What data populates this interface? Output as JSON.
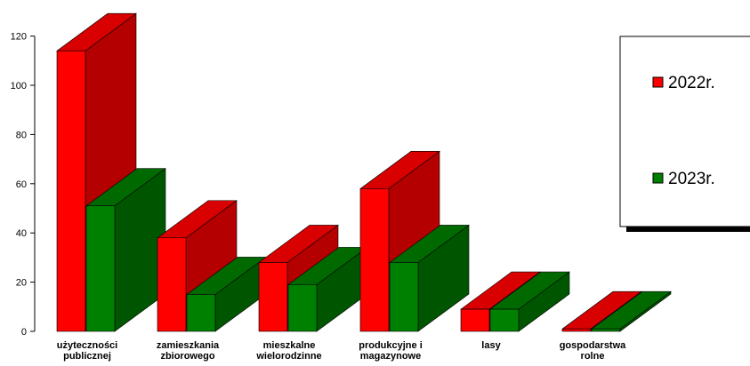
{
  "chart_data": {
    "type": "bar",
    "categories": [
      [
        "użyteczności",
        "publicznej"
      ],
      [
        "zamieszkania",
        "zbiorowego"
      ],
      [
        "mieszkalne",
        "wielorodzinne"
      ],
      [
        "produkcyjne i",
        "magazynowe"
      ],
      [
        "lasy"
      ],
      [
        "gospodarstwa",
        "rolne"
      ]
    ],
    "series": [
      {
        "name": "2022r.",
        "values": [
          114,
          38,
          28,
          58,
          9,
          1
        ],
        "color": "#ff0000",
        "side_color": "#b40000",
        "top_color": "#d80000"
      },
      {
        "name": "2023r.",
        "values": [
          51,
          15,
          19,
          28,
          9,
          1
        ],
        "color": "#008000",
        "side_color": "#005600",
        "top_color": "#006a00"
      }
    ],
    "y_ticks": [
      0,
      20,
      40,
      60,
      80,
      100,
      120
    ],
    "ylim": [
      0,
      120
    ],
    "grid": false,
    "legend_position": "right",
    "style": "3d-bar"
  }
}
